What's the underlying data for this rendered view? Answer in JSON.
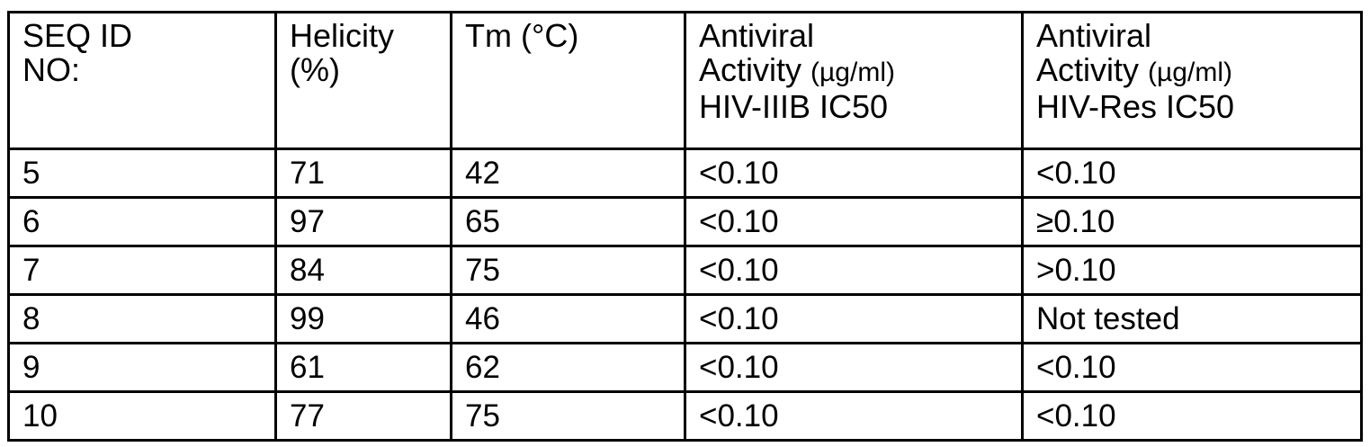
{
  "table": {
    "headers": [
      {
        "line1": "SEQ ID",
        "line2": "NO:",
        "line3": ""
      },
      {
        "line1": "Helicity",
        "line2": "(%)",
        "line3": ""
      },
      {
        "line1": "Tm (°C)",
        "line2": "",
        "line3": ""
      },
      {
        "line1": "Antiviral",
        "line2": "Activity",
        "unit": "(µg/ml)",
        "line3": "HIV-IIIB  IC50"
      },
      {
        "line1": "Antiviral",
        "line2": "Activity",
        "unit": "(µg/ml)",
        "line3": "HIV-Res  IC50"
      }
    ],
    "rows": [
      [
        "5",
        "71",
        "42",
        "<0.10",
        "<0.10"
      ],
      [
        "6",
        "97",
        "65",
        "<0.10",
        "≥0.10"
      ],
      [
        "7",
        "84",
        "75",
        "<0.10",
        ">0.10"
      ],
      [
        "8",
        "99",
        "46",
        "<0.10",
        "Not tested"
      ],
      [
        "9",
        "61",
        "62",
        "<0.10",
        "<0.10"
      ],
      [
        "10",
        "77",
        "75",
        "<0.10",
        "<0.10"
      ]
    ]
  }
}
